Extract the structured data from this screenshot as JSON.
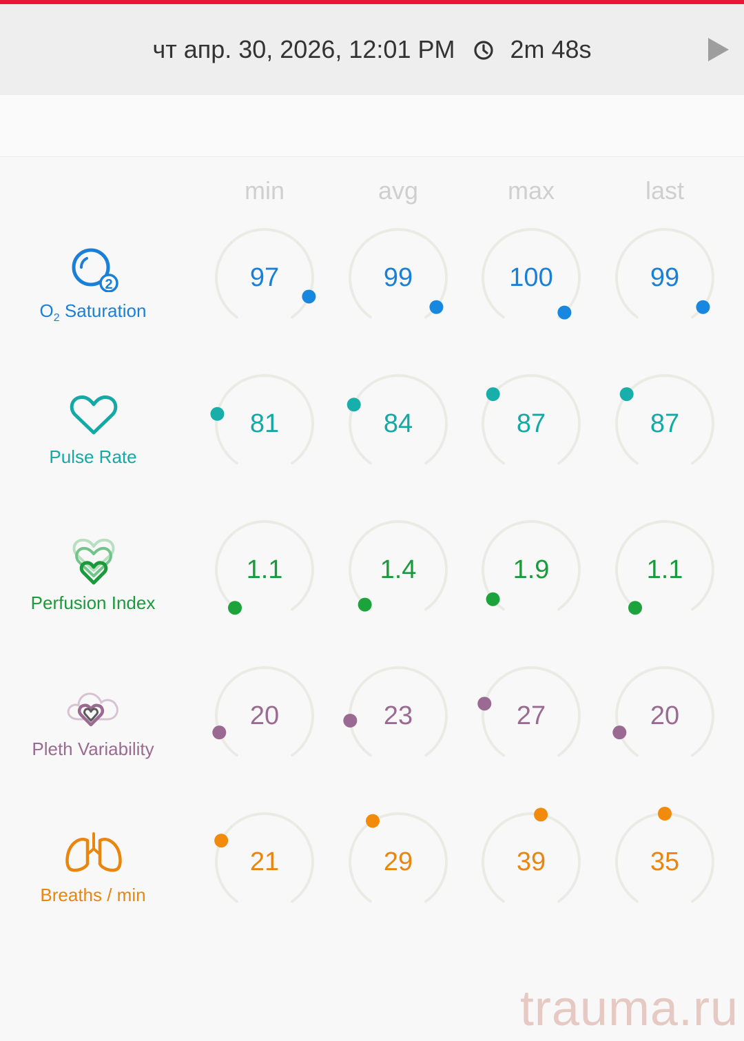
{
  "header": {
    "datetime": "чт апр. 30, 2026, 12:01 PM",
    "duration": "2m 48s",
    "clock_icon": "clock-icon",
    "play_icon": "play-icon"
  },
  "columns": [
    "min",
    "avg",
    "max",
    "last"
  ],
  "rows": [
    {
      "key": "o2",
      "label_prefix": "O",
      "label_sub": "2",
      "label_rest": " Saturation",
      "icon": "o2-saturation-icon",
      "color": "#1a7fd6",
      "dot": "#1787e0",
      "values": [
        "97",
        "99",
        "100",
        "99"
      ],
      "levels": [
        0.89,
        0.94,
        0.97,
        0.94
      ]
    },
    {
      "key": "pulse",
      "label": "Pulse Rate",
      "icon": "heart-icon",
      "color": "#15a9a5",
      "dot": "#19aea9",
      "values": [
        "81",
        "84",
        "87",
        "87"
      ],
      "levels": [
        0.23,
        0.27,
        0.32,
        0.32
      ]
    },
    {
      "key": "pi",
      "label": "Perfusion Index",
      "icon": "perfusion-index-icon",
      "color": "#1a9a3a",
      "dot": "#1ca33c",
      "values": [
        "1.1",
        "1.4",
        "1.9",
        "1.1"
      ],
      "levels": [
        0.01,
        0.03,
        0.06,
        0.01
      ]
    },
    {
      "key": "pvi",
      "label": "Pleth Variability",
      "icon": "pleth-variability-icon",
      "color": "#9a6a91",
      "dot": "#9b6a93",
      "values": [
        "20",
        "23",
        "27",
        "20"
      ],
      "levels": [
        0.12,
        0.17,
        0.24,
        0.12
      ]
    },
    {
      "key": "rr",
      "label": "Breaths / min",
      "icon": "lungs-icon",
      "color": "#e8860f",
      "dot": "#f28a0c",
      "values": [
        "21",
        "29",
        "39",
        "35"
      ],
      "levels": [
        0.28,
        0.39,
        0.54,
        0.5
      ]
    }
  ],
  "watermark": "trauma.ru"
}
